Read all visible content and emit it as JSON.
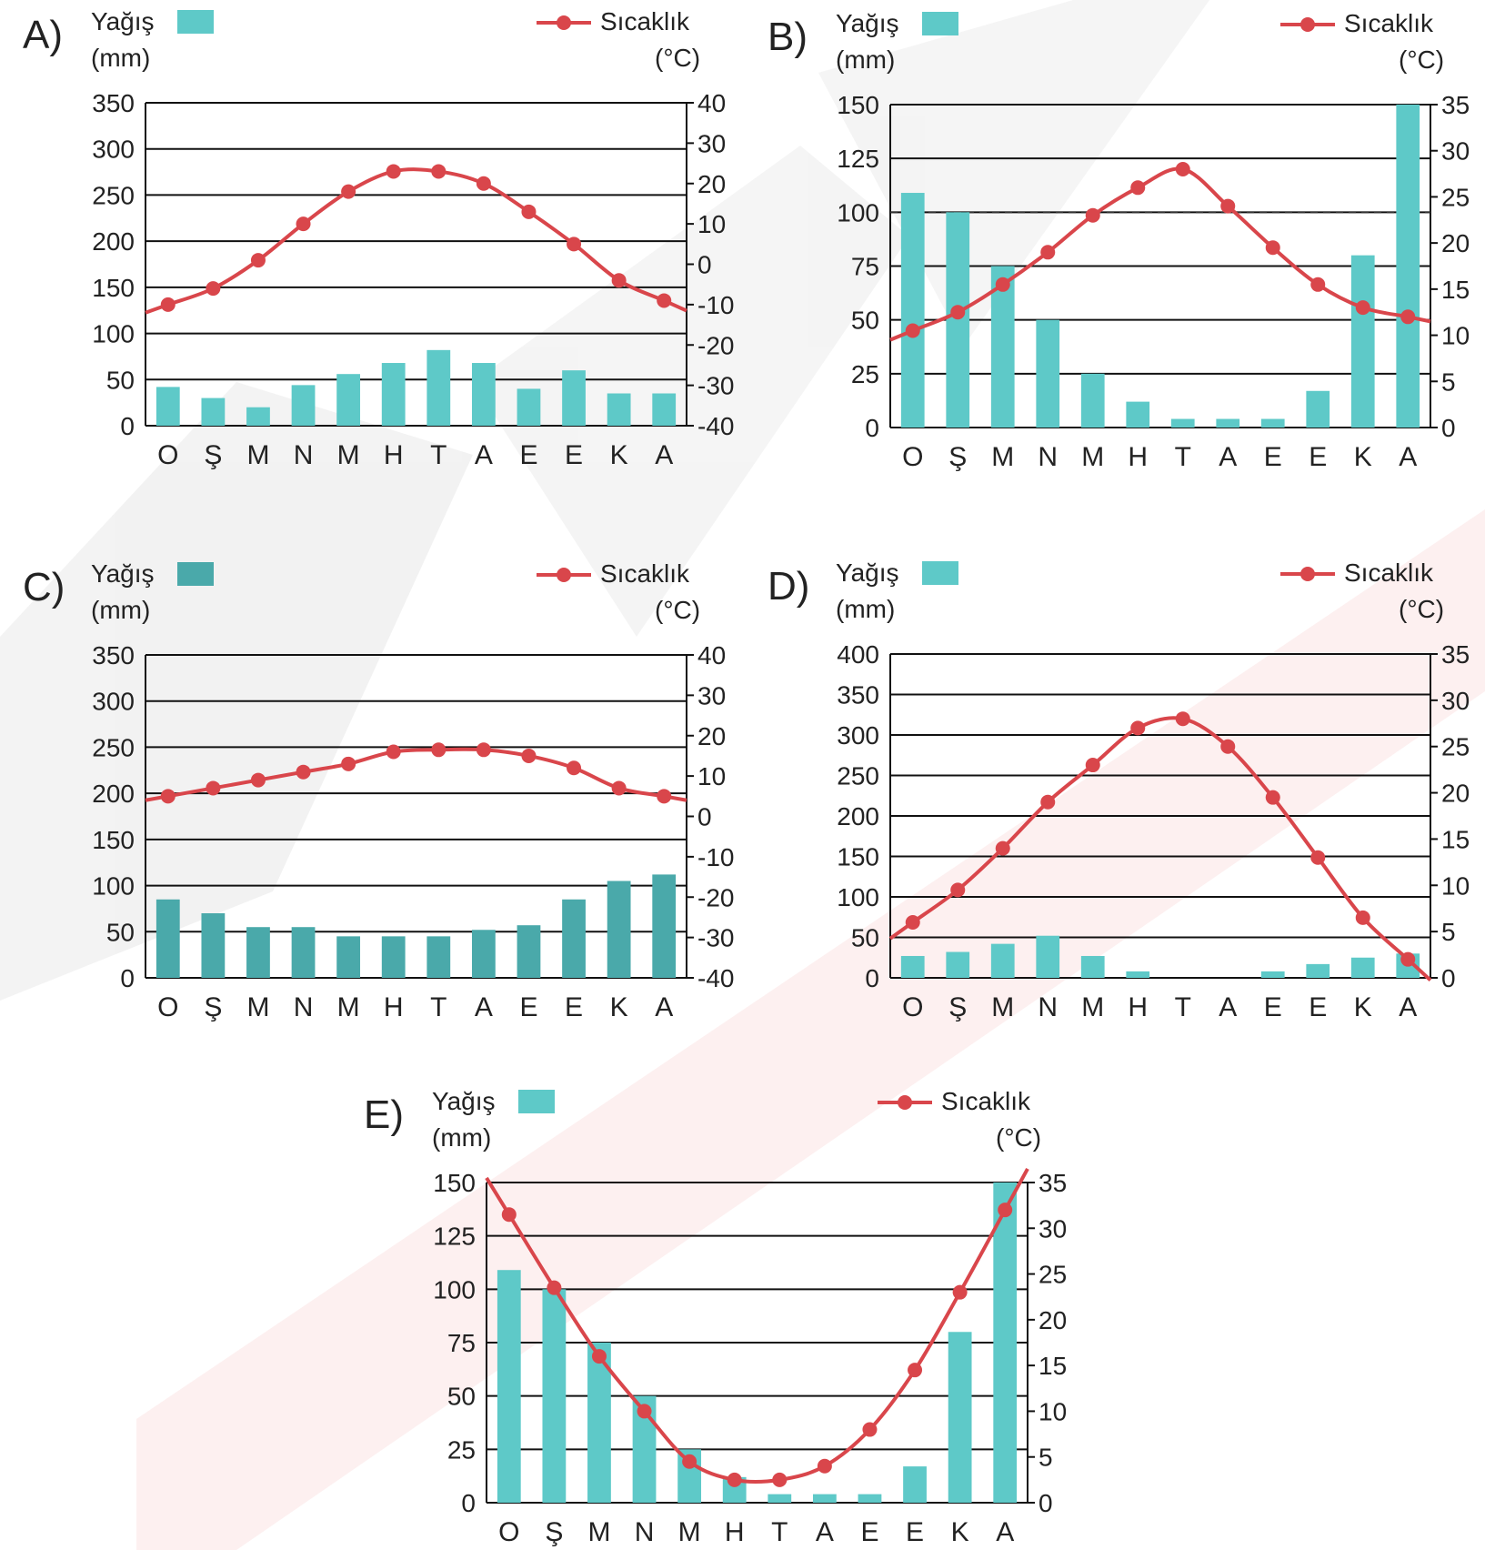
{
  "chart_data": [
    {
      "type": "bar+line",
      "label": "A)",
      "precip_legend": "Yağış",
      "precip_unit": "(mm)",
      "temp_legend": "Sıcaklık",
      "temp_unit": "(°C)",
      "categories": [
        "O",
        "Ş",
        "M",
        "N",
        "M",
        "H",
        "T",
        "A",
        "E",
        "E",
        "K",
        "A"
      ],
      "precip_ticks": [
        0,
        50,
        100,
        150,
        200,
        250,
        300,
        350
      ],
      "temp_ticks": [
        -40,
        -30,
        -20,
        -10,
        0,
        10,
        20,
        30,
        40
      ],
      "precip_range": [
        0,
        350
      ],
      "temp_range": [
        -40,
        40
      ],
      "precipitation": [
        42,
        30,
        20,
        44,
        56,
        68,
        82,
        68,
        40,
        60,
        35,
        35
      ],
      "temperature": [
        -10,
        -6,
        1,
        10,
        18,
        23,
        23,
        20,
        13,
        5,
        -4,
        -9
      ],
      "bar_color": "#5ec9c8",
      "line_color": "#d9464b"
    },
    {
      "type": "bar+line",
      "label": "B)",
      "precip_legend": "Yağış",
      "precip_unit": "(mm)",
      "temp_legend": "Sıcaklık",
      "temp_unit": "(°C)",
      "categories": [
        "O",
        "Ş",
        "M",
        "N",
        "M",
        "H",
        "T",
        "A",
        "E",
        "E",
        "K",
        "A"
      ],
      "precip_ticks": [
        0,
        25,
        50,
        75,
        100,
        125,
        150
      ],
      "temp_ticks": [
        0,
        5,
        10,
        15,
        20,
        25,
        30,
        35
      ],
      "precip_range": [
        0,
        150
      ],
      "temp_range": [
        0,
        35
      ],
      "precipitation": [
        109,
        100,
        75,
        50,
        25,
        12,
        4,
        4,
        4,
        17,
        80,
        150
      ],
      "temperature": [
        10.5,
        12.5,
        15.5,
        19,
        23,
        26,
        28,
        24,
        19.5,
        15.5,
        13,
        12
      ],
      "dashed_line_precip": 100,
      "bar_color": "#5ec9c8",
      "line_color": "#d9464b"
    },
    {
      "type": "bar+line",
      "label": "C)",
      "precip_legend": "Yağış",
      "precip_unit": "(mm)",
      "temp_legend": "Sıcaklık",
      "temp_unit": "(°C)",
      "categories": [
        "O",
        "Ş",
        "M",
        "N",
        "M",
        "H",
        "T",
        "A",
        "E",
        "E",
        "K",
        "A"
      ],
      "precip_ticks": [
        0,
        50,
        100,
        150,
        200,
        250,
        300,
        350
      ],
      "temp_ticks": [
        -40,
        -30,
        -20,
        -10,
        0,
        10,
        20,
        30,
        40
      ],
      "precip_range": [
        0,
        350
      ],
      "temp_range": [
        -40,
        40
      ],
      "precipitation": [
        85,
        70,
        55,
        55,
        45,
        45,
        45,
        52,
        57,
        85,
        105,
        112
      ],
      "temperature": [
        5,
        7,
        9,
        11,
        13,
        16,
        16.5,
        16.5,
        15,
        12,
        7,
        5
      ],
      "bar_color": "#4aa9aa",
      "line_color": "#d9464b"
    },
    {
      "type": "bar+line",
      "label": "D)",
      "precip_legend": "Yağış",
      "precip_unit": "(mm)",
      "temp_legend": "Sıcaklık",
      "temp_unit": "(°C)",
      "categories": [
        "O",
        "Ş",
        "M",
        "N",
        "M",
        "H",
        "T",
        "A",
        "E",
        "E",
        "K",
        "A"
      ],
      "precip_ticks": [
        0,
        50,
        100,
        150,
        200,
        250,
        300,
        350,
        400
      ],
      "temp_ticks": [
        0,
        5,
        10,
        15,
        20,
        25,
        30,
        35
      ],
      "precip_range": [
        0,
        400
      ],
      "temp_range": [
        0,
        35
      ],
      "precipitation": [
        27,
        32,
        42,
        52,
        27,
        8,
        0,
        0,
        8,
        17,
        25,
        30
      ],
      "temperature": [
        6,
        9.5,
        14,
        19,
        23,
        27,
        28,
        25,
        19.5,
        13,
        6.5,
        2
      ],
      "bar_color": "#5ec9c8",
      "line_color": "#d9464b"
    },
    {
      "type": "bar+line",
      "label": "E)",
      "precip_legend": "Yağış",
      "precip_unit": "(mm)",
      "temp_legend": "Sıcaklık",
      "temp_unit": "(°C)",
      "categories": [
        "O",
        "Ş",
        "M",
        "N",
        "M",
        "H",
        "T",
        "A",
        "E",
        "E",
        "K",
        "A"
      ],
      "precip_ticks": [
        0,
        25,
        50,
        75,
        100,
        125,
        150
      ],
      "temp_ticks": [
        0,
        5,
        10,
        15,
        20,
        25,
        30,
        35
      ],
      "precip_range": [
        0,
        150
      ],
      "temp_range": [
        0,
        35
      ],
      "precipitation": [
        109,
        100,
        75,
        50,
        25,
        12,
        4,
        4,
        4,
        17,
        80,
        150
      ],
      "temperature": [
        31.5,
        23.5,
        16,
        10,
        4.5,
        2.5,
        2.5,
        4,
        8,
        14.5,
        23,
        32
      ],
      "bar_color": "#5ec9c8",
      "line_color": "#d9464b"
    }
  ]
}
